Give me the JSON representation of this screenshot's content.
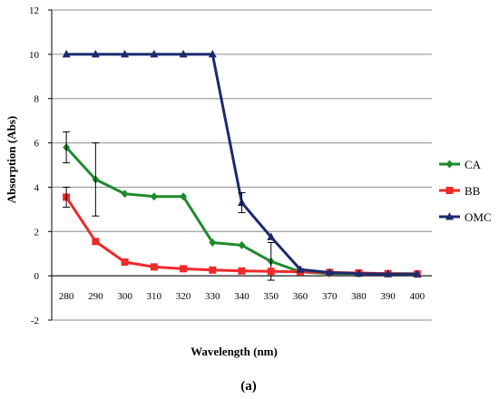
{
  "chart_data": {
    "type": "line",
    "title": "",
    "xlabel": "Wavelength (nm)",
    "ylabel": "Absorption (Abs)",
    "panel_label": "(a)",
    "x": [
      280,
      290,
      300,
      310,
      320,
      330,
      340,
      350,
      360,
      370,
      380,
      390,
      400
    ],
    "x_tick_labels": [
      "280",
      "290",
      "300",
      "310",
      "320",
      "330",
      "340",
      "350",
      "360",
      "370",
      "380",
      "390",
      "400"
    ],
    "y_ticks": [
      -2,
      0,
      2,
      4,
      6,
      8,
      10,
      12
    ],
    "y_tick_labels": [
      "-2",
      "0",
      "2",
      "4",
      "6",
      "8",
      "10",
      "12"
    ],
    "ylim": [
      -2,
      12
    ],
    "grid": "horizontal",
    "legend_position": "right",
    "series": [
      {
        "name": "CA",
        "color": "#1e8a2e",
        "marker": "diamond",
        "values": [
          5.8,
          4.35,
          3.7,
          3.58,
          3.58,
          1.5,
          1.38,
          0.65,
          0.18,
          0.1,
          0.1,
          0.1,
          0.1
        ],
        "error": [
          0.7,
          1.65,
          0,
          0,
          0,
          0,
          0,
          0.85,
          0,
          0,
          0,
          0,
          0
        ]
      },
      {
        "name": "BB",
        "color": "#ee2a2a",
        "marker": "square",
        "values": [
          3.55,
          1.55,
          0.62,
          0.4,
          0.32,
          0.26,
          0.22,
          0.2,
          0.18,
          0.15,
          0.13,
          0.1,
          0.08
        ],
        "error": [
          0.45,
          0,
          0,
          0,
          0,
          0,
          0,
          0,
          0,
          0,
          0,
          0,
          0
        ]
      },
      {
        "name": "OMC",
        "color": "#1c2a6e",
        "marker": "triangle",
        "values": [
          10,
          10,
          10,
          10,
          10,
          10,
          3.3,
          1.75,
          0.28,
          0.15,
          0.1,
          0.08,
          0.08
        ],
        "error": [
          0,
          0,
          0,
          0,
          0,
          0,
          0.45,
          0,
          0,
          0,
          0,
          0,
          0
        ]
      }
    ]
  }
}
